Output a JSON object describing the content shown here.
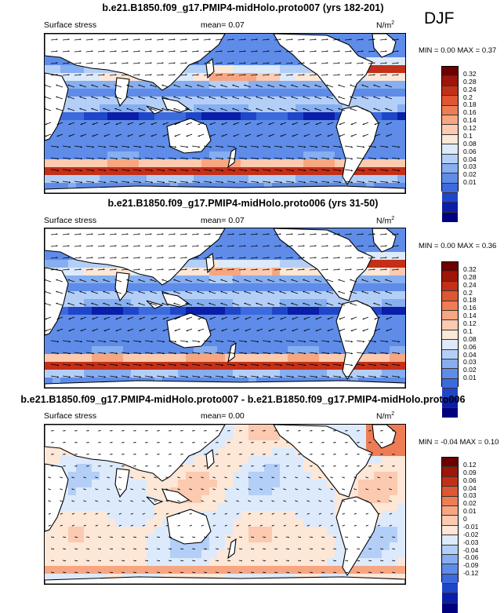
{
  "season": "DJF",
  "palette_abs": [
    "#00007f",
    "#0a1ea8",
    "#1f46c8",
    "#3d6adc",
    "#5e8ce8",
    "#86aef0",
    "#b4cff7",
    "#ddeafc",
    "#fde7d7",
    "#fbcab0",
    "#f7a682",
    "#ee7d55",
    "#de5632",
    "#c42f18",
    "#9e150a",
    "#6e0000"
  ],
  "palette_diff": [
    "#00007f",
    "#0a1ea8",
    "#1f46c8",
    "#3d6adc",
    "#5e8ce8",
    "#86aef0",
    "#b4cff7",
    "#ddeafc",
    "#fde7d7",
    "#fbcab0",
    "#f7a682",
    "#ee7d55",
    "#de5632",
    "#c42f18",
    "#9e150a",
    "#6e0000"
  ],
  "panels": [
    {
      "title": "b.e21.B1850.f09_g17.PMIP4-midHolo.proto007 (yrs 182-201)",
      "variable": "Surface stress",
      "mean_label": "mean=",
      "mean_value": "0.07",
      "units_base": "N/m",
      "units_exp": "2",
      "min_label": "MIN =",
      "min_value": "0.00",
      "max_label": "MAX =",
      "max_value": "0.37",
      "colorbar_labels": [
        "0.32",
        "0.28",
        "0.24",
        "0.2",
        "0.18",
        "0.16",
        "0.14",
        "0.12",
        "0.1",
        "0.08",
        "0.06",
        "0.04",
        "0.03",
        "0.02",
        "0.01"
      ]
    },
    {
      "title": "b.e21.B1850.f09_g17.PMIP4-midHolo.proto006 (yrs 31-50)",
      "variable": "Surface stress",
      "mean_label": "mean=",
      "mean_value": "0.07",
      "units_base": "N/m",
      "units_exp": "2",
      "min_label": "MIN =",
      "min_value": "0.00",
      "max_label": "MAX =",
      "max_value": "0.36",
      "colorbar_labels": [
        "0.32",
        "0.28",
        "0.24",
        "0.2",
        "0.18",
        "0.16",
        "0.14",
        "0.12",
        "0.1",
        "0.08",
        "0.06",
        "0.04",
        "0.03",
        "0.02",
        "0.01"
      ]
    },
    {
      "title": "b.e21.B1850.f09_g17.PMIP4-midHolo.proto007 - b.e21.B1850.f09_g17.PMIP4-midHolo.proto006",
      "variable": "Surface stress",
      "mean_label": "mean=",
      "mean_value": "0.00",
      "units_base": "N/m",
      "units_exp": "2",
      "min_label": "MIN =",
      "min_value": "-0.04",
      "max_label": "MAX =",
      "max_value": "0.10",
      "colorbar_labels": [
        "0.12",
        "0.09",
        "0.06",
        "0.04",
        "0.03",
        "0.02",
        "0.01",
        "0",
        "-0.01",
        "-0.02",
        "-0.03",
        "-0.04",
        "-0.06",
        "-0.09",
        "-0.12"
      ]
    }
  ]
}
